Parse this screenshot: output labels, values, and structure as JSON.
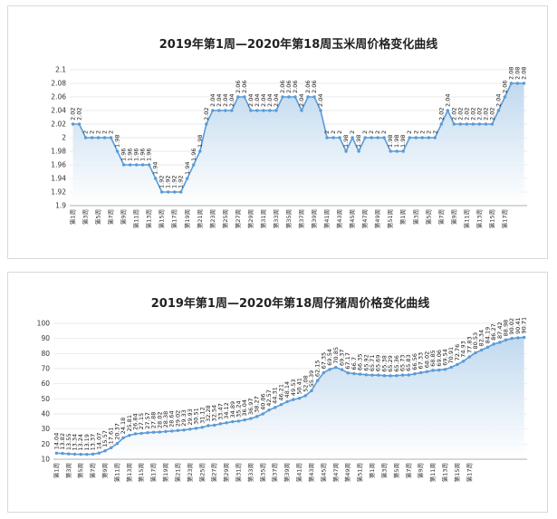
{
  "chart_data": [
    {
      "id": "corn",
      "type": "area",
      "title": "2019年第1周—2020年第18周玉米周价格变化曲线",
      "ylim": [
        1.9,
        2.1
      ],
      "yticks": [
        "1.9",
        "1.92",
        "1.94",
        "1.96",
        "1.98",
        "2",
        "2.02",
        "2.04",
        "2.06",
        "2.08",
        "2.1"
      ],
      "grid": true,
      "line_color": "#5b9bd5",
      "fill_top_color": "#bdd7ee",
      "fill_bottom_color": "#ffffff",
      "x_labels": [
        "第1周",
        "第3周",
        "第5周",
        "第7周",
        "第9周",
        "第11周",
        "第13周",
        "第15周",
        "第17周",
        "第19周",
        "第21周",
        "第23周",
        "第25周",
        "第27周",
        "第29周",
        "第31周",
        "第33周",
        "第35周",
        "第37周",
        "第39周",
        "第41周",
        "第43周",
        "第45周",
        "第47周",
        "第49周",
        "第51周",
        "第1周",
        "第3周",
        "第5周",
        "第7周",
        "第9周",
        "第11周",
        "第13周",
        "第15周",
        "第17周"
      ],
      "values": [
        2.02,
        2.02,
        2,
        2,
        2,
        2,
        2,
        1.98,
        1.96,
        1.96,
        1.96,
        1.96,
        1.96,
        1.94,
        1.92,
        1.92,
        1.92,
        1.92,
        1.94,
        1.96,
        1.98,
        2.02,
        2.04,
        2.04,
        2.04,
        2.04,
        2.06,
        2.06,
        2.04,
        2.04,
        2.04,
        2.04,
        2.04,
        2.06,
        2.06,
        2.06,
        2.04,
        2.06,
        2.06,
        2.04,
        2,
        2,
        2,
        1.98,
        2,
        1.98,
        2,
        2,
        2,
        2,
        1.98,
        1.98,
        1.98,
        2,
        2,
        2,
        2,
        2,
        2.02,
        2.04,
        2.02,
        2.02,
        2.02,
        2.02,
        2.02,
        2.02,
        2.02,
        2.04,
        2.06,
        2.08,
        2.08,
        2.08
      ],
      "labels": [
        "2.02",
        "2.02",
        "2",
        "2",
        "2",
        "2",
        "2",
        "1.98",
        "1.96",
        "1.96",
        "1.96",
        "1.96",
        "1.96",
        "1.94",
        "1.92",
        "1.92",
        "1.92",
        "1.92",
        "1.94",
        "1.96",
        "1.98",
        "2.02",
        "2.04",
        "2.04",
        "2.04",
        "2.04",
        "2.06",
        "2.06",
        "2.04",
        "2.04",
        "2.04",
        "2.04",
        "2.04",
        "2.06",
        "2.06",
        "2.06",
        "2.04",
        "2.06",
        "2.06",
        "2.04",
        "2",
        "2",
        "2",
        "1.98",
        "2",
        "1.98",
        "2",
        "2",
        "2",
        "2",
        "1.98",
        "1.98",
        "1.98",
        "2",
        "2",
        "2",
        "2",
        "2",
        "2.02",
        "2.04",
        "2.02",
        "2.02",
        "2.02",
        "2.02",
        "2.02",
        "2.02",
        "2.02",
        "2.04",
        "2.06",
        "2.08",
        "2.08",
        "2.08"
      ]
    },
    {
      "id": "pig",
      "type": "area",
      "title": "2019年第1周—2020年第18周仔猪周价格变化曲线",
      "ylim": [
        10,
        100
      ],
      "yticks": [
        "10",
        "20",
        "30",
        "40",
        "50",
        "60",
        "70",
        "80",
        "90",
        "100"
      ],
      "grid": true,
      "line_color": "#5b9bd5",
      "fill_top_color": "#bdd7ee",
      "fill_bottom_color": "#ffffff",
      "x_labels": [
        "第1周",
        "第3周",
        "第5周",
        "第7周",
        "第9周",
        "第11周",
        "第13周",
        "第15周",
        "第17周",
        "第19周",
        "第21周",
        "第23周",
        "第25周",
        "第27周",
        "第29周",
        "第31周",
        "第33周",
        "第35周",
        "第37周",
        "第39周",
        "第41周",
        "第43周",
        "第45周",
        "第47周",
        "第49周",
        "第51周",
        "第1周",
        "第3周",
        "第5周",
        "第7周",
        "第9周",
        "第11周",
        "第13周",
        "第15周",
        "第17周"
      ],
      "values": [
        14.04,
        13.82,
        13.55,
        13.34,
        13.24,
        13.19,
        13.37,
        14.07,
        15.57,
        17.61,
        20.37,
        24.18,
        25.81,
        26.84,
        27.15,
        27.57,
        27.88,
        28.02,
        28.38,
        28.64,
        29.02,
        29.33,
        29.93,
        30.51,
        31.12,
        32.28,
        32.54,
        33.47,
        34.12,
        34.89,
        35.24,
        36.04,
        36.97,
        38.27,
        40.06,
        42.57,
        44.31,
        46.21,
        48.14,
        49.53,
        50.41,
        52.08,
        55.39,
        62.15,
        67.35,
        69.54,
        70.85,
        69.37,
        67.17,
        66.7,
        66.35,
        65.92,
        65.71,
        65.69,
        65.38,
        65.29,
        65.36,
        65.73,
        65.83,
        66.56,
        67.33,
        68.02,
        68.85,
        69.06,
        69.54,
        70.91,
        72.76,
        74.93,
        77.83,
        80.53,
        82.34,
        84.19,
        86.27,
        87.42,
        88.98,
        90.02,
        90.41,
        90.71
      ],
      "labels": [
        "14.04",
        "13.82",
        "13.55",
        "13.34",
        "13.24",
        "13.19",
        "13.37",
        "14.07",
        "15.57",
        "17.61",
        "20.37",
        "24.18",
        "25.81",
        "26.84",
        "27.15",
        "27.57",
        "27.88",
        "28.02",
        "28.38",
        "28.64",
        "29.02",
        "29.33",
        "29.93",
        "30.51",
        "31.12",
        "32.28",
        "32.54",
        "33.47",
        "34.12",
        "34.89",
        "35.24",
        "36.04",
        "36.97",
        "38.27",
        "40.06",
        "42.57",
        "44.31",
        "46.21",
        "48.14",
        "49.53",
        "50.41",
        "52.08",
        "55.39",
        "62.15",
        "67.35",
        "69.54",
        "70.85",
        "69.37",
        "67.17",
        "66.7",
        "66.35",
        "65.92",
        "65.71",
        "65.69",
        "65.38",
        "65.29",
        "65.36",
        "65.73",
        "65.83",
        "66.56",
        "67.33",
        "68.02",
        "68.85",
        "69.06",
        "69.54",
        "70.91",
        "72.76",
        "74.93",
        "77.83",
        "80.53",
        "82.34",
        "84.19",
        "86.27",
        "87.42",
        "88.98",
        "90.02",
        "90.41",
        "90.71"
      ]
    }
  ]
}
